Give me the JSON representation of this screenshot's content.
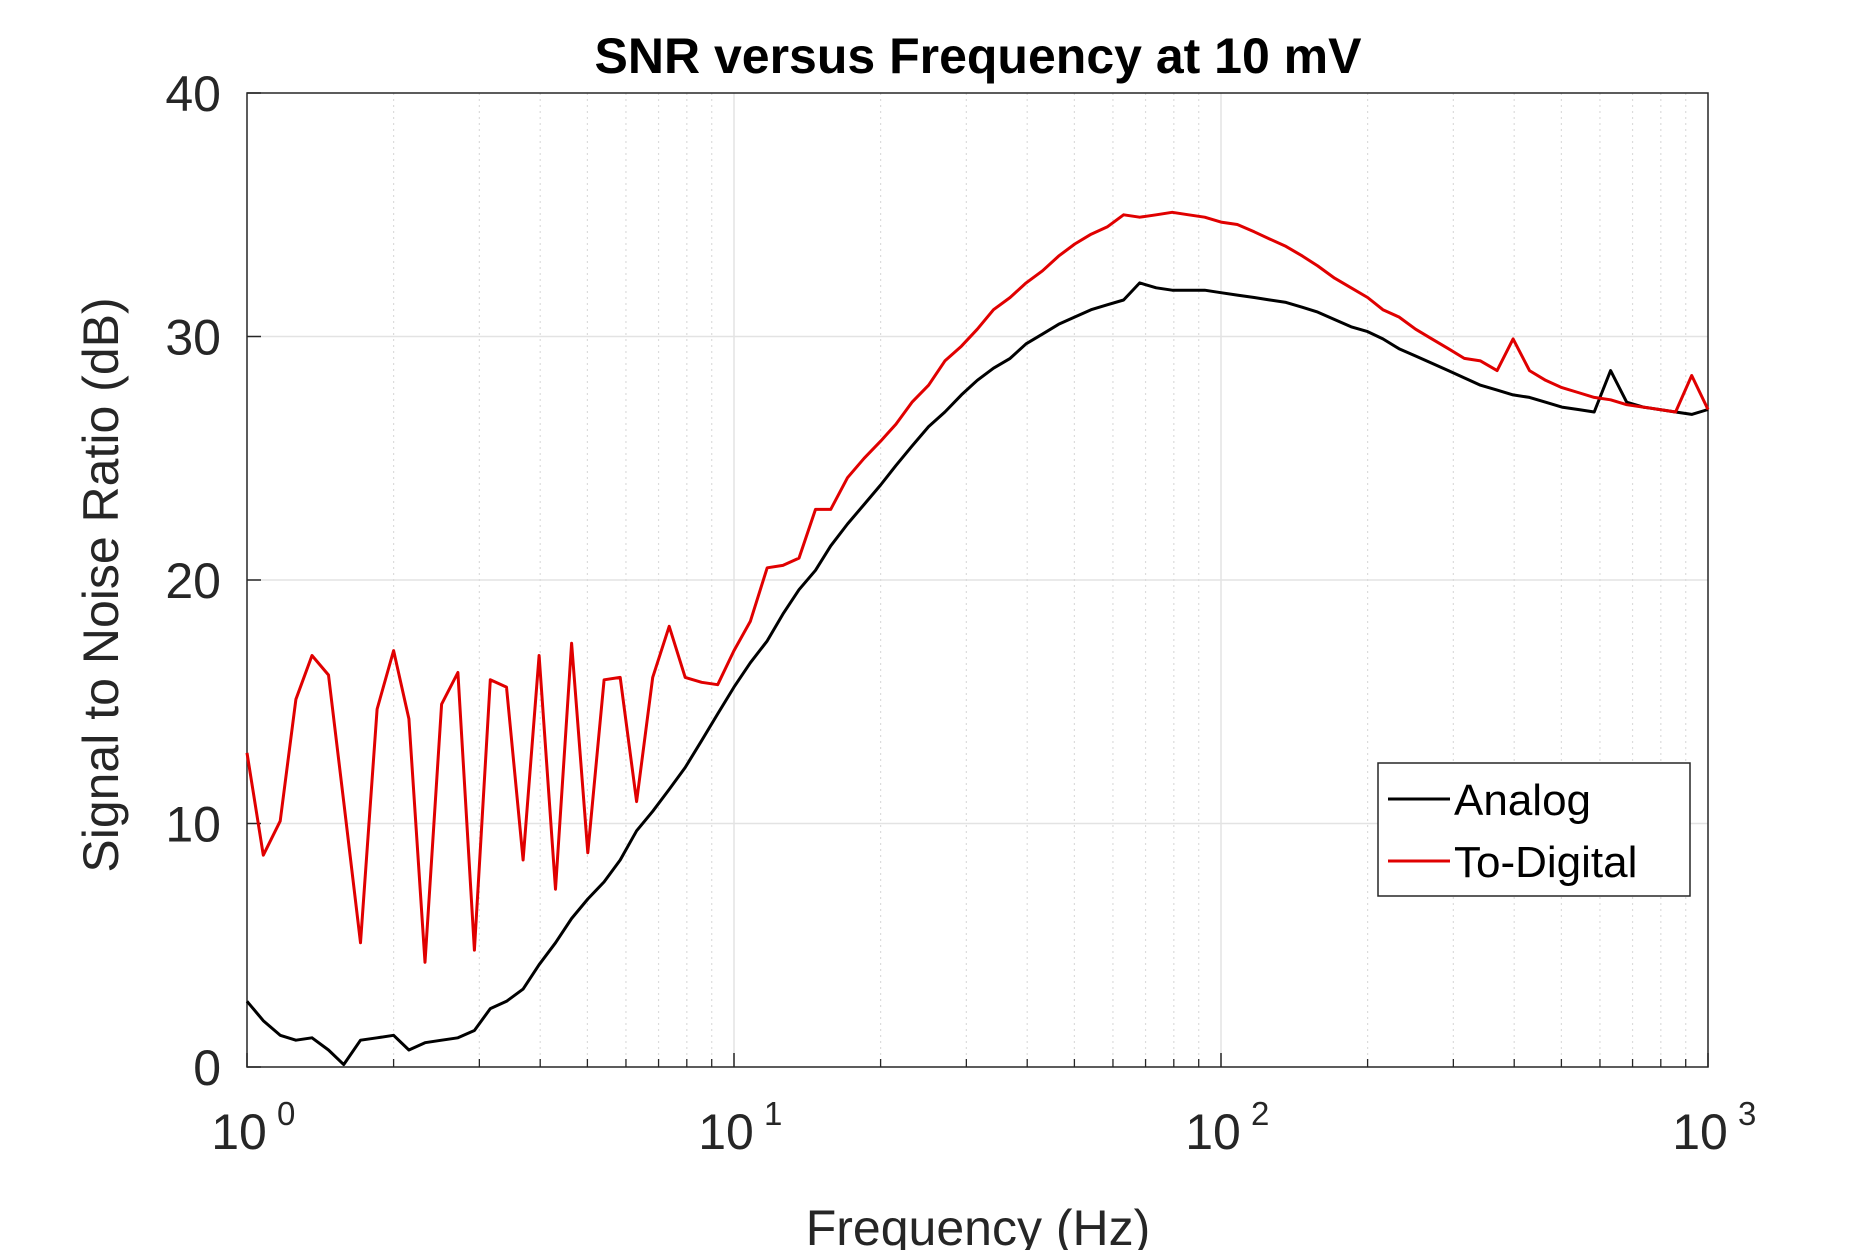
{
  "chart_data": {
    "type": "line",
    "title": "SNR versus Frequency at 10 mV",
    "xlabel": "Frequency (Hz)",
    "ylabel": "Signal to Noise Ratio (dB)",
    "xscale": "log",
    "xlim": [
      1,
      1000
    ],
    "ylim": [
      0,
      40
    ],
    "yticks": [
      0,
      10,
      20,
      30,
      40
    ],
    "ytick_labels": [
      "0",
      "10",
      "20",
      "30",
      "40"
    ],
    "xticks": [
      1,
      10,
      100,
      1000
    ],
    "xtick_labels": [
      {
        "base": "10",
        "exp": "0"
      },
      {
        "base": "10",
        "exp": "1"
      },
      {
        "base": "10",
        "exp": "2"
      },
      {
        "base": "10",
        "exp": "3"
      }
    ],
    "grid": true,
    "legend": "lower right",
    "series": [
      {
        "name": "Analog",
        "color": "#000000",
        "x": [
          1.0,
          1.08,
          1.17,
          1.26,
          1.36,
          1.47,
          1.58,
          1.71,
          1.85,
          2.0,
          2.15,
          2.32,
          2.51,
          2.71,
          2.93,
          3.16,
          3.41,
          3.69,
          3.98,
          4.3,
          4.64,
          5.01,
          5.41,
          5.84,
          6.31,
          6.81,
          7.36,
          7.94,
          8.58,
          9.26,
          10.0,
          10.8,
          11.7,
          12.6,
          13.6,
          14.7,
          15.8,
          17.1,
          18.5,
          20.0,
          21.5,
          23.2,
          25.1,
          27.1,
          29.3,
          31.6,
          34.1,
          36.9,
          39.8,
          43.0,
          46.4,
          50.1,
          54.1,
          58.4,
          63.1,
          68.1,
          73.6,
          79.4,
          85.8,
          92.6,
          100.0,
          108,
          117,
          126,
          136,
          147,
          158,
          171,
          185,
          200,
          215,
          232,
          251,
          271,
          293,
          316,
          341,
          369,
          398,
          430,
          464,
          501,
          541,
          584,
          631,
          681,
          736,
          794,
          858,
          926,
          1000
        ],
        "y": [
          2.7,
          1.9,
          1.3,
          1.1,
          1.2,
          0.7,
          0.1,
          1.1,
          1.2,
          1.3,
          0.7,
          1.0,
          1.1,
          1.2,
          1.5,
          2.4,
          2.7,
          3.2,
          4.2,
          5.1,
          6.1,
          6.9,
          7.6,
          8.5,
          9.7,
          10.5,
          11.4,
          12.3,
          13.4,
          14.5,
          15.6,
          16.6,
          17.5,
          18.6,
          19.6,
          20.4,
          21.4,
          22.3,
          23.1,
          23.9,
          24.7,
          25.5,
          26.3,
          26.9,
          27.6,
          28.2,
          28.7,
          29.1,
          29.7,
          30.1,
          30.5,
          30.8,
          31.1,
          31.3,
          31.5,
          32.2,
          32.0,
          31.9,
          31.9,
          31.9,
          31.8,
          31.7,
          31.6,
          31.5,
          31.4,
          31.2,
          31.0,
          30.7,
          30.4,
          30.2,
          29.9,
          29.5,
          29.2,
          28.9,
          28.6,
          28.3,
          28.0,
          27.8,
          27.6,
          27.5,
          27.3,
          27.1,
          27.0,
          26.9,
          28.6,
          27.3,
          27.1,
          27.0,
          26.9,
          26.8,
          27.0
        ],
        "note": null
      },
      {
        "name": "To-Digital",
        "color": "#e00000",
        "x": [],
        "y": []
      }
    ]
  },
  "legend": {
    "items": [
      {
        "label": "Analog",
        "color": "#000000"
      },
      {
        "label": "To-Digital",
        "color": "#e00000"
      }
    ]
  }
}
